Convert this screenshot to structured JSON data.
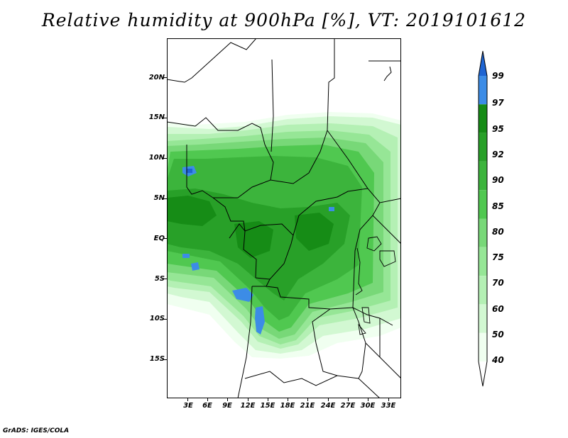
{
  "title": "Relative humidity at 900hPa [%], VT: 2019101612",
  "footer": "GrADS: IGES/COLA",
  "axes": {
    "lat_labels": [
      "20N",
      "15N",
      "10N",
      "5N",
      "EQ",
      "5S",
      "10S",
      "15S"
    ],
    "lon_labels": [
      "3E",
      "6E",
      "9E",
      "12E",
      "15E",
      "18E",
      "21E",
      "24E",
      "27E",
      "30E",
      "33E"
    ]
  },
  "colorbar": {
    "levels": [
      "99",
      "97",
      "95",
      "92",
      "90",
      "85",
      "80",
      "75",
      "70",
      "60",
      "50",
      "40"
    ],
    "colors": [
      "#1e64d2",
      "#3c8ce6",
      "#168c16",
      "#28a028",
      "#3cb43c",
      "#50c850",
      "#78d878",
      "#96e696",
      "#b4f0b4",
      "#d2f8d2",
      "#f0fff0",
      "#ffffff"
    ]
  },
  "chart_data": {
    "type": "heatmap",
    "title": "Relative humidity at 900hPa [%], VT: 2019101612",
    "variable": "relative humidity",
    "units": "%",
    "level": "900hPa",
    "valid_time": "2019101612",
    "lon_range": [
      0,
      34
    ],
    "lat_range": [
      -19.5,
      24.5
    ],
    "contour_levels": [
      40,
      50,
      60,
      70,
      75,
      80,
      85,
      90,
      92,
      95,
      97,
      99
    ]
  }
}
